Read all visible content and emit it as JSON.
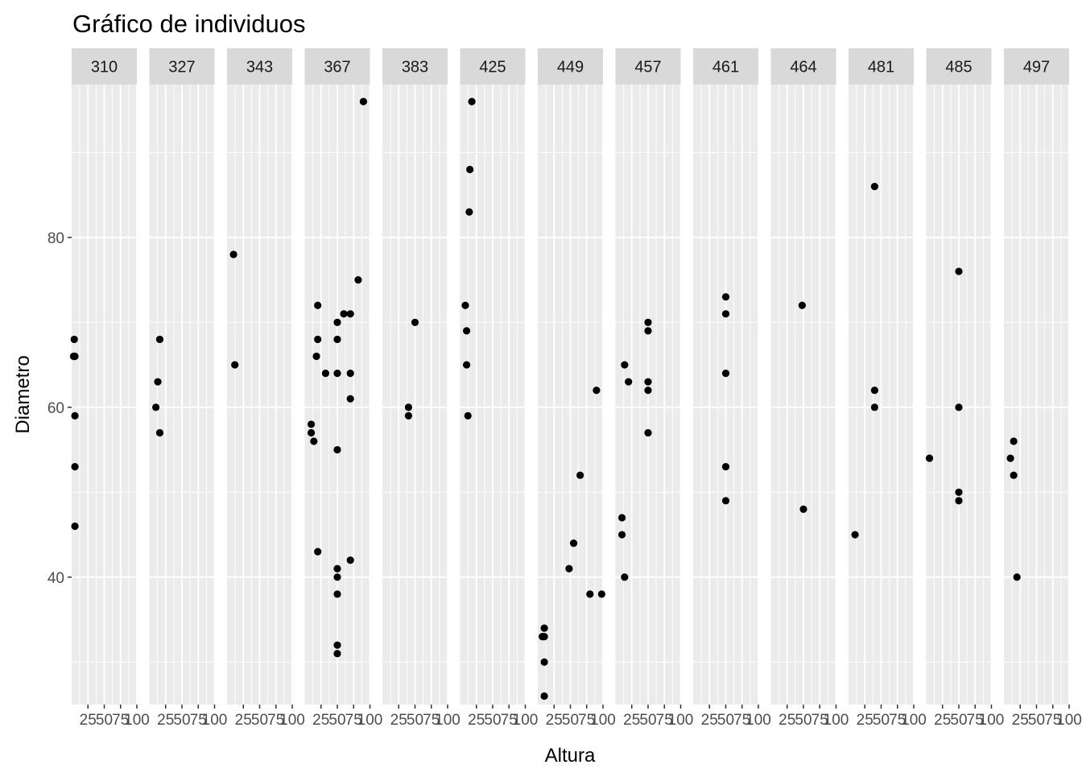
{
  "chart_data": {
    "type": "scatter",
    "title": "Gráfico de individuos",
    "xlabel": "Altura",
    "ylabel": "Diametro",
    "xlim": [
      0,
      100
    ],
    "ylim": [
      25,
      98
    ],
    "x_ticks": [
      25,
      50,
      75,
      100
    ],
    "x_tick_labels": [
      "25",
      "50",
      "75",
      "100"
    ],
    "y_ticks": [
      40,
      60,
      80
    ],
    "y_tick_labels": [
      "40",
      "60",
      "80"
    ],
    "grid": true,
    "theme": "ggplot2-grey",
    "panel_background": "#EBEBEB",
    "strip_background": "#D9D9D9",
    "grid_color": "#FFFFFF",
    "point_color": "#000000",
    "facets": [
      {
        "label": "310",
        "points": [
          {
            "x": 4,
            "y": 68
          },
          {
            "x": 4,
            "y": 66
          },
          {
            "x": 3,
            "y": 66
          },
          {
            "x": 5,
            "y": 66
          },
          {
            "x": 5,
            "y": 59
          },
          {
            "x": 5,
            "y": 53
          },
          {
            "x": 5,
            "y": 46
          }
        ]
      },
      {
        "label": "327",
        "points": [
          {
            "x": 16,
            "y": 68
          },
          {
            "x": 13,
            "y": 63
          },
          {
            "x": 10,
            "y": 60
          },
          {
            "x": 16,
            "y": 57
          }
        ]
      },
      {
        "label": "343",
        "points": [
          {
            "x": 10,
            "y": 78
          },
          {
            "x": 12,
            "y": 65
          }
        ]
      },
      {
        "label": "367",
        "points": [
          {
            "x": 90,
            "y": 96
          },
          {
            "x": 82,
            "y": 75
          },
          {
            "x": 20,
            "y": 72
          },
          {
            "x": 60,
            "y": 71
          },
          {
            "x": 70,
            "y": 71
          },
          {
            "x": 50,
            "y": 70
          },
          {
            "x": 20,
            "y": 68
          },
          {
            "x": 50,
            "y": 68
          },
          {
            "x": 18,
            "y": 66
          },
          {
            "x": 32,
            "y": 64
          },
          {
            "x": 50,
            "y": 64
          },
          {
            "x": 70,
            "y": 64
          },
          {
            "x": 70,
            "y": 61
          },
          {
            "x": 10,
            "y": 58
          },
          {
            "x": 10,
            "y": 57
          },
          {
            "x": 14,
            "y": 56
          },
          {
            "x": 50,
            "y": 55
          },
          {
            "x": 20,
            "y": 43
          },
          {
            "x": 70,
            "y": 42
          },
          {
            "x": 50,
            "y": 41
          },
          {
            "x": 50,
            "y": 40
          },
          {
            "x": 50,
            "y": 38
          },
          {
            "x": 50,
            "y": 32
          },
          {
            "x": 50,
            "y": 31
          }
        ]
      },
      {
        "label": "383",
        "points": [
          {
            "x": 50,
            "y": 70
          },
          {
            "x": 40,
            "y": 60
          },
          {
            "x": 40,
            "y": 59
          }
        ]
      },
      {
        "label": "425",
        "points": [
          {
            "x": 18,
            "y": 96
          },
          {
            "x": 15,
            "y": 88
          },
          {
            "x": 14,
            "y": 83
          },
          {
            "x": 8,
            "y": 72
          },
          {
            "x": 10,
            "y": 69
          },
          {
            "x": 10,
            "y": 65
          },
          {
            "x": 12,
            "y": 59
          }
        ]
      },
      {
        "label": "449",
        "points": [
          {
            "x": 90,
            "y": 62
          },
          {
            "x": 65,
            "y": 52
          },
          {
            "x": 55,
            "y": 44
          },
          {
            "x": 48,
            "y": 41
          },
          {
            "x": 80,
            "y": 38
          },
          {
            "x": 98,
            "y": 38
          },
          {
            "x": 10,
            "y": 34
          },
          {
            "x": 7,
            "y": 33
          },
          {
            "x": 10,
            "y": 33
          },
          {
            "x": 10,
            "y": 30
          },
          {
            "x": 10,
            "y": 26
          }
        ]
      },
      {
        "label": "457",
        "points": [
          {
            "x": 50,
            "y": 70
          },
          {
            "x": 50,
            "y": 69
          },
          {
            "x": 14,
            "y": 65
          },
          {
            "x": 20,
            "y": 63
          },
          {
            "x": 50,
            "y": 63
          },
          {
            "x": 50,
            "y": 62
          },
          {
            "x": 50,
            "y": 57
          },
          {
            "x": 10,
            "y": 47
          },
          {
            "x": 10,
            "y": 45
          },
          {
            "x": 14,
            "y": 40
          }
        ]
      },
      {
        "label": "461",
        "points": [
          {
            "x": 50,
            "y": 73
          },
          {
            "x": 50,
            "y": 71
          },
          {
            "x": 50,
            "y": 64
          },
          {
            "x": 50,
            "y": 53
          },
          {
            "x": 50,
            "y": 49
          }
        ]
      },
      {
        "label": "464",
        "points": [
          {
            "x": 48,
            "y": 72
          },
          {
            "x": 50,
            "y": 48
          }
        ]
      },
      {
        "label": "481",
        "points": [
          {
            "x": 40,
            "y": 86
          },
          {
            "x": 40,
            "y": 62
          },
          {
            "x": 40,
            "y": 60
          },
          {
            "x": 10,
            "y": 45
          }
        ]
      },
      {
        "label": "485",
        "points": [
          {
            "x": 50,
            "y": 76
          },
          {
            "x": 50,
            "y": 60
          },
          {
            "x": 5,
            "y": 54
          },
          {
            "x": 50,
            "y": 50
          },
          {
            "x": 50,
            "y": 49
          }
        ]
      },
      {
        "label": "497",
        "points": [
          {
            "x": 15,
            "y": 56
          },
          {
            "x": 10,
            "y": 54
          },
          {
            "x": 15,
            "y": 52
          },
          {
            "x": 20,
            "y": 40
          }
        ]
      }
    ]
  }
}
